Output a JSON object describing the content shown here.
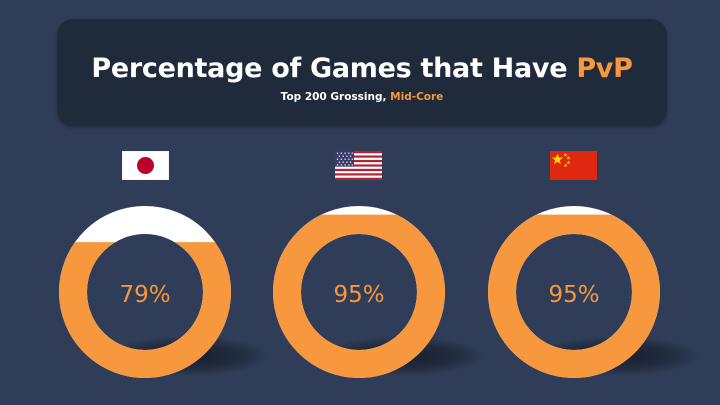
{
  "header": {
    "title_main": "Percentage of Games that Have ",
    "title_accent": "PvP",
    "subtitle_main": "Top 200 Grossing, ",
    "subtitle_accent": "Mid-Core"
  },
  "colors": {
    "fill": "#f7973e",
    "empty": "#ffffff",
    "background": "#2f3d58",
    "panel": "#1f2a3b",
    "accent_text": "#f7973e"
  },
  "chart_data": {
    "type": "donut",
    "title": "Percentage of Games that Have PvP",
    "subtitle": "Top 200 Grossing, Mid-Core",
    "categories": [
      "Japan",
      "United States",
      "China"
    ],
    "values": [
      79,
      95,
      95
    ],
    "labels": [
      "79%",
      "95%",
      "95%"
    ],
    "icons": [
      "japan-flag-icon",
      "usa-flag-icon",
      "china-flag-icon"
    ],
    "unit": "%"
  }
}
